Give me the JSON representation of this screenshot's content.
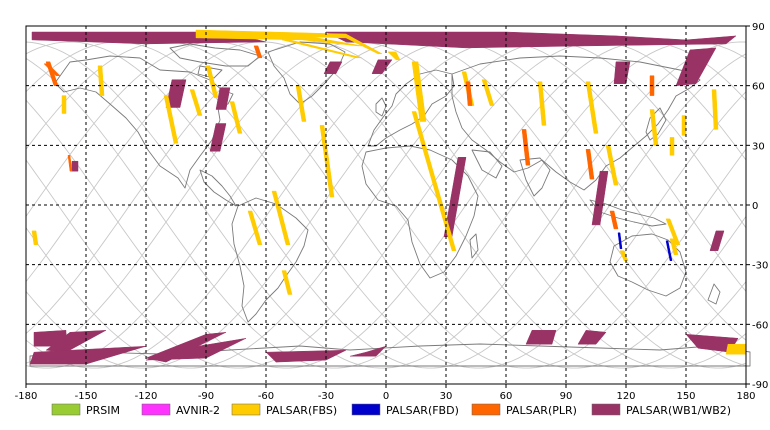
{
  "map": {
    "x_ticks": [
      "-180",
      "-150",
      "-120",
      "-90",
      "-60",
      "-30",
      "0",
      "30",
      "60",
      "90",
      "120",
      "150",
      "180"
    ],
    "y_ticks": [
      "90",
      "60",
      "30",
      "0",
      "-30",
      "-60",
      "-90"
    ],
    "extent": {
      "lon": [
        -180,
        180
      ],
      "lat": [
        -90,
        90
      ]
    }
  },
  "legend": [
    {
      "label": "PRSIM",
      "color": "#99cc33"
    },
    {
      "label": "AVNIR-2",
      "color": "#ff33ff"
    },
    {
      "label": "PALSAR(FBS)",
      "color": "#ffcc00"
    },
    {
      "label": "PALSAR(FBD)",
      "color": "#0000cc"
    },
    {
      "label": "PALSAR(PLR)",
      "color": "#ff6600"
    },
    {
      "label": "PALSAR(WB1/WB2)",
      "color": "#993366"
    }
  ],
  "acquisitions": {
    "wb": [
      [
        [
          -177,
          87
        ],
        [
          -80,
          87
        ],
        [
          -60,
          82
        ],
        [
          -120,
          81
        ],
        [
          -177,
          83
        ]
      ],
      [
        [
          -30,
          87
        ],
        [
          60,
          87
        ],
        [
          115,
          85
        ],
        [
          150,
          83
        ],
        [
          175,
          85
        ],
        [
          170,
          81
        ],
        [
          100,
          80
        ],
        [
          40,
          79
        ],
        [
          -20,
          82
        ]
      ],
      [
        [
          152,
          78
        ],
        [
          165,
          79
        ],
        [
          155,
          61
        ],
        [
          145,
          60
        ]
      ],
      [
        [
          115,
          72
        ],
        [
          122,
          72
        ],
        [
          120,
          61
        ],
        [
          114,
          61
        ]
      ],
      [
        [
          -107,
          63
        ],
        [
          -100,
          63
        ],
        [
          -103,
          49
        ],
        [
          -110,
          49
        ]
      ],
      [
        [
          -83,
          59
        ],
        [
          -78,
          59
        ],
        [
          -80,
          48
        ],
        [
          -85,
          48
        ]
      ],
      [
        [
          -85,
          41
        ],
        [
          -80,
          41
        ],
        [
          -83,
          27
        ],
        [
          -88,
          27
        ]
      ],
      [
        [
          -4,
          73
        ],
        [
          3,
          73
        ],
        [
          -2,
          66
        ],
        [
          -7,
          66
        ]
      ],
      [
        [
          -28,
          72
        ],
        [
          -22,
          72
        ],
        [
          -25,
          66
        ],
        [
          -31,
          66
        ]
      ],
      [
        [
          36,
          24
        ],
        [
          40,
          24
        ],
        [
          33,
          -16
        ],
        [
          29,
          -16
        ]
      ],
      [
        [
          107,
          17
        ],
        [
          111,
          17
        ],
        [
          107,
          -10
        ],
        [
          103,
          -10
        ]
      ],
      [
        [
          165,
          -13
        ],
        [
          169,
          -13
        ],
        [
          166,
          -23
        ],
        [
          162,
          -23
        ]
      ],
      [
        [
          -157,
          22
        ],
        [
          -154,
          22
        ],
        [
          -154,
          17
        ],
        [
          -157,
          17
        ]
      ],
      [
        [
          -176,
          -64
        ],
        [
          -160,
          -63
        ],
        [
          -160,
          -71
        ],
        [
          -176,
          -71
        ]
      ],
      [
        [
          -158,
          -64
        ],
        [
          -140,
          -63
        ],
        [
          -160,
          -74
        ],
        [
          -170,
          -73
        ]
      ],
      [
        [
          -176,
          -74
        ],
        [
          -120,
          -71
        ],
        [
          -150,
          -80
        ],
        [
          -178,
          -80
        ]
      ],
      [
        [
          -120,
          -77
        ],
        [
          -90,
          -65
        ],
        [
          -80,
          -64
        ],
        [
          -110,
          -79
        ]
      ],
      [
        [
          -100,
          -72
        ],
        [
          -70,
          -67
        ],
        [
          -90,
          -77
        ],
        [
          -120,
          -78
        ]
      ],
      [
        [
          -60,
          -74
        ],
        [
          -20,
          -73
        ],
        [
          -30,
          -78
        ],
        [
          -55,
          -79
        ]
      ],
      [
        [
          -10,
          -74
        ],
        [
          0,
          -71
        ],
        [
          -5,
          -76
        ],
        [
          -18,
          -76
        ]
      ],
      [
        [
          73,
          -63
        ],
        [
          85,
          -63
        ],
        [
          83,
          -70
        ],
        [
          70,
          -70
        ]
      ],
      [
        [
          100,
          -63
        ],
        [
          110,
          -64
        ],
        [
          105,
          -70
        ],
        [
          96,
          -70
        ]
      ],
      [
        [
          150,
          -65
        ],
        [
          176,
          -67
        ],
        [
          172,
          -74
        ],
        [
          156,
          -72
        ]
      ]
    ],
    "fbs": [
      [
        [
          -95,
          88
        ],
        [
          -20,
          86
        ],
        [
          -2,
          76
        ],
        [
          -4,
          76
        ],
        [
          -20,
          84
        ],
        [
          -95,
          86
        ]
      ],
      [
        [
          -95,
          86
        ],
        [
          -40,
          85
        ],
        [
          -12,
          80
        ],
        [
          -14,
          80
        ],
        [
          -42,
          83
        ],
        [
          -95,
          84
        ]
      ],
      [
        [
          1,
          77
        ],
        [
          5,
          77
        ],
        [
          7,
          73
        ],
        [
          5,
          73
        ]
      ],
      [
        [
          13,
          72
        ],
        [
          16,
          72
        ],
        [
          20,
          42
        ],
        [
          17,
          42
        ]
      ],
      [
        [
          -52,
          83
        ],
        [
          -48,
          83
        ],
        [
          -12,
          74
        ],
        [
          -15,
          74
        ]
      ],
      [
        [
          -111,
          55
        ],
        [
          -109,
          55
        ],
        [
          -104,
          31
        ],
        [
          -106,
          31
        ]
      ],
      [
        [
          -78,
          52
        ],
        [
          -76,
          52
        ],
        [
          -72,
          36
        ],
        [
          -74,
          36
        ]
      ],
      [
        [
          -90,
          70
        ],
        [
          -88,
          70
        ],
        [
          -84,
          54
        ],
        [
          -86,
          54
        ]
      ],
      [
        [
          -98,
          58
        ],
        [
          -96,
          58
        ],
        [
          -92,
          45
        ],
        [
          -94,
          45
        ]
      ],
      [
        [
          -144,
          70
        ],
        [
          -142,
          70
        ],
        [
          -141,
          55
        ],
        [
          -143,
          55
        ]
      ],
      [
        [
          -57,
          7
        ],
        [
          -55,
          7
        ],
        [
          -48,
          -20
        ],
        [
          -50,
          -20
        ]
      ],
      [
        [
          -69,
          -3
        ],
        [
          -67,
          -3
        ],
        [
          -62,
          -20
        ],
        [
          -64,
          -20
        ]
      ],
      [
        [
          -52,
          -33
        ],
        [
          -50,
          -33
        ],
        [
          -47,
          -45
        ],
        [
          -49,
          -45
        ]
      ],
      [
        [
          -33,
          40
        ],
        [
          -31,
          40
        ],
        [
          -26,
          4
        ],
        [
          -28,
          4
        ]
      ],
      [
        [
          13,
          47
        ],
        [
          15,
          47
        ],
        [
          35,
          -23
        ],
        [
          33,
          -23
        ]
      ],
      [
        [
          -45,
          60
        ],
        [
          -43,
          60
        ],
        [
          -40,
          42
        ],
        [
          -42,
          42
        ]
      ],
      [
        [
          38,
          67
        ],
        [
          40,
          67
        ],
        [
          44,
          50
        ],
        [
          42,
          50
        ]
      ],
      [
        [
          48,
          63
        ],
        [
          50,
          63
        ],
        [
          54,
          50
        ],
        [
          52,
          50
        ]
      ],
      [
        [
          76,
          62
        ],
        [
          78,
          62
        ],
        [
          80,
          40
        ],
        [
          78,
          40
        ]
      ],
      [
        [
          100,
          62
        ],
        [
          102,
          62
        ],
        [
          106,
          36
        ],
        [
          104,
          36
        ]
      ],
      [
        [
          110,
          30
        ],
        [
          112,
          30
        ],
        [
          116,
          10
        ],
        [
          114,
          10
        ]
      ],
      [
        [
          163,
          58
        ],
        [
          165,
          58
        ],
        [
          166,
          38
        ],
        [
          164,
          38
        ]
      ],
      [
        [
          132,
          48
        ],
        [
          134,
          48
        ],
        [
          136,
          30
        ],
        [
          134,
          30
        ]
      ],
      [
        [
          148,
          45
        ],
        [
          150,
          45
        ],
        [
          150,
          35
        ],
        [
          148,
          35
        ]
      ],
      [
        [
          142,
          34
        ],
        [
          144,
          34
        ],
        [
          144,
          25
        ],
        [
          142,
          25
        ]
      ],
      [
        [
          -162,
          55
        ],
        [
          -160,
          55
        ],
        [
          -160,
          46
        ],
        [
          -162,
          46
        ]
      ],
      [
        [
          -177,
          -13
        ],
        [
          -175,
          -13
        ],
        [
          -174,
          -20
        ],
        [
          -176,
          -20
        ]
      ],
      [
        [
          142,
          -17
        ],
        [
          144,
          -17
        ],
        [
          146,
          -25
        ],
        [
          144,
          -25
        ]
      ],
      [
        [
          140,
          -7
        ],
        [
          142,
          -7
        ],
        [
          147,
          -20
        ],
        [
          145,
          -20
        ]
      ],
      [
        [
          117,
          -23
        ],
        [
          119,
          -23
        ],
        [
          121,
          -28
        ],
        [
          119,
          -28
        ]
      ],
      [
        [
          171,
          -70
        ],
        [
          180,
          -70
        ],
        [
          180,
          -75
        ],
        [
          170,
          -75
        ]
      ]
    ],
    "fbd": [
      [
        [
          116,
          -14
        ],
        [
          117,
          -14
        ],
        [
          118,
          -22
        ],
        [
          117,
          -22
        ]
      ],
      [
        [
          140,
          -18
        ],
        [
          141,
          -18
        ],
        [
          143,
          -28
        ],
        [
          142,
          -28
        ]
      ]
    ],
    "plr": [
      [
        [
          -170,
          72
        ],
        [
          -168,
          72
        ],
        [
          -164,
          60
        ],
        [
          -166,
          60
        ]
      ],
      [
        [
          -171,
          71
        ],
        [
          -169,
          71
        ],
        [
          -163,
          65
        ],
        [
          -165,
          65
        ]
      ],
      [
        [
          -66,
          80
        ],
        [
          -64,
          80
        ],
        [
          -62,
          74
        ],
        [
          -64,
          74
        ]
      ],
      [
        [
          -159,
          25
        ],
        [
          -158,
          25
        ],
        [
          -157,
          17
        ],
        [
          -158,
          17
        ]
      ],
      [
        [
          68,
          38
        ],
        [
          70,
          38
        ],
        [
          72,
          20
        ],
        [
          70,
          20
        ]
      ],
      [
        [
          100,
          28
        ],
        [
          102,
          28
        ],
        [
          104,
          13
        ],
        [
          102,
          13
        ]
      ],
      [
        [
          112,
          -3
        ],
        [
          114,
          -3
        ],
        [
          116,
          -12
        ],
        [
          114,
          -12
        ]
      ],
      [
        [
          132,
          65
        ],
        [
          134,
          65
        ],
        [
          134,
          55
        ],
        [
          132,
          55
        ]
      ],
      [
        [
          40,
          62
        ],
        [
          42,
          62
        ],
        [
          43,
          50
        ],
        [
          41,
          50
        ]
      ]
    ]
  }
}
